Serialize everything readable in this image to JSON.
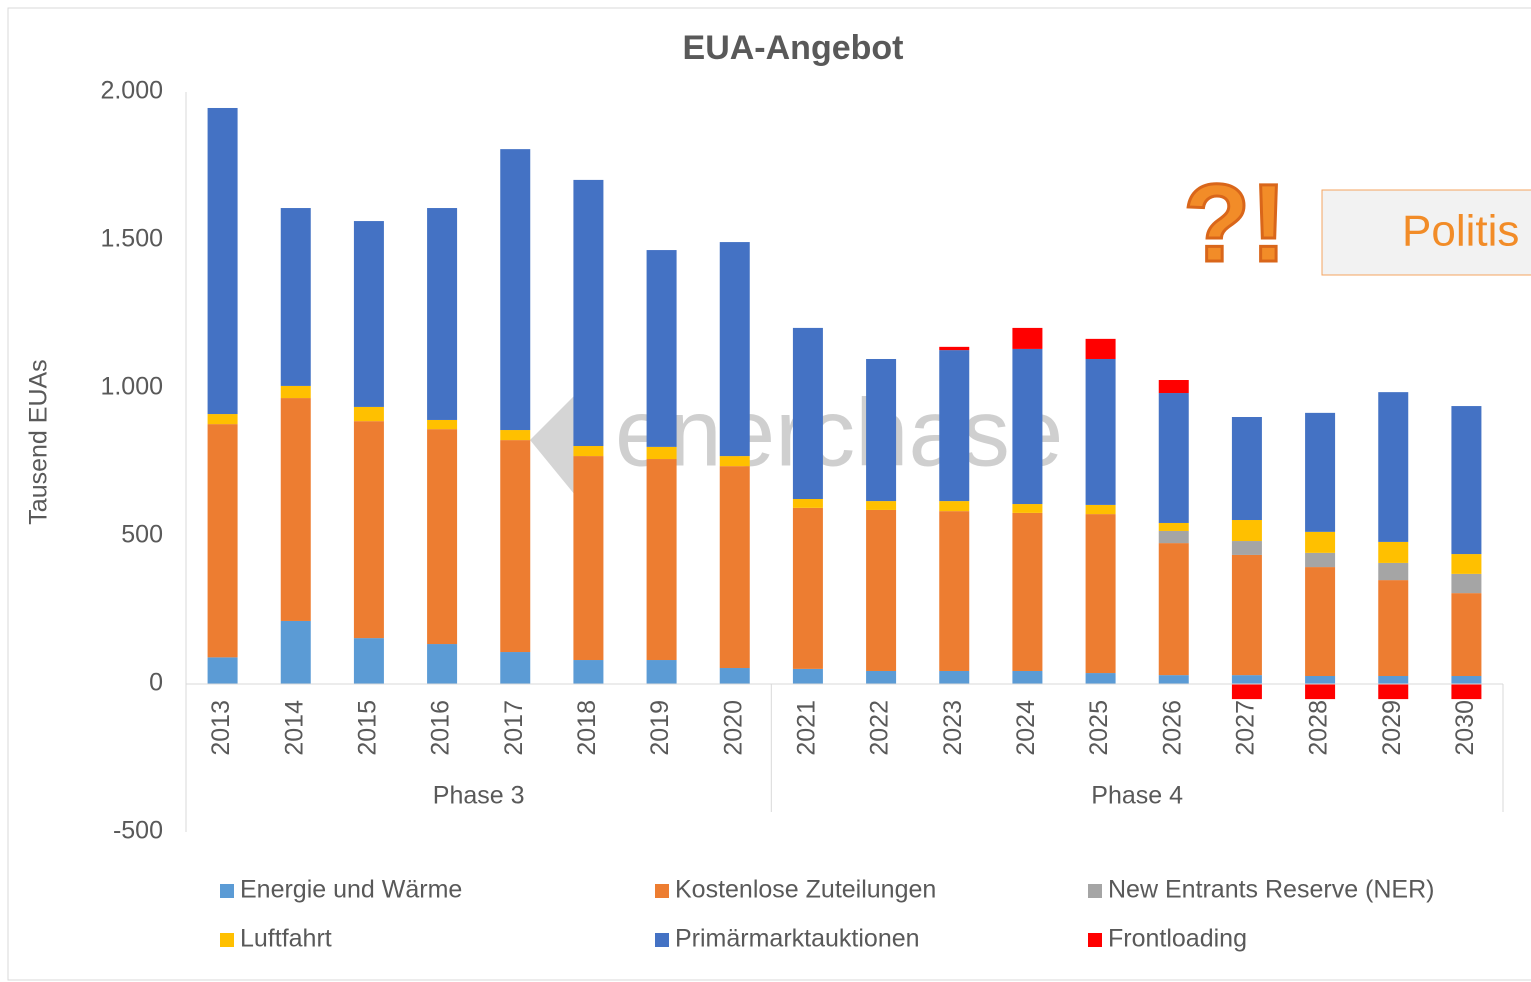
{
  "chart_data": {
    "type": "stacked_bar",
    "title": "EUA-Angebot",
    "y_label": "Tausend EUAs",
    "categories": [
      "2013",
      "2014",
      "2015",
      "2016",
      "2017",
      "2018",
      "2019",
      "2020",
      "2021",
      "2022",
      "2023",
      "2024",
      "2025",
      "2026",
      "2027",
      "2028",
      "2029",
      "2030"
    ],
    "groups": [
      {
        "name": "Phase 3",
        "categories": 8
      },
      {
        "name": "Phase 4",
        "categories": 10
      }
    ],
    "series": [
      {
        "name": "Energie und Wärme",
        "color": "#5b9bd5",
        "values": [
          90,
          213,
          155,
          135,
          108,
          81,
          81,
          54,
          51,
          44,
          44,
          44,
          37,
          30,
          30,
          27,
          27,
          27
        ]
      },
      {
        "name": "Kostenlose Zuteilungen",
        "color": "#ed7d31",
        "values": [
          788,
          753,
          733,
          726,
          716,
          689,
          679,
          682,
          544,
          544,
          540,
          534,
          537,
          446,
          406,
          368,
          324,
          280
        ]
      },
      {
        "name": "New Entrants Reserve (NER)",
        "color": "#a5a5a5",
        "values": [
          0,
          0,
          0,
          0,
          0,
          0,
          0,
          0,
          0,
          0,
          0,
          0,
          0,
          41,
          47,
          48,
          58,
          65
        ]
      },
      {
        "name": "Luftfahrt",
        "color": "#ffc000",
        "values": [
          34,
          41,
          48,
          31,
          34,
          34,
          41,
          34,
          30,
          30,
          34,
          30,
          31,
          27,
          71,
          71,
          71,
          67
        ]
      },
      {
        "name": "Primärmarktauktionen",
        "color": "#4472c4",
        "values": [
          1034,
          601,
          628,
          716,
          949,
          899,
          665,
          723,
          578,
          480,
          510,
          524,
          493,
          439,
          348,
          402,
          506,
          500
        ]
      },
      {
        "name": "Frontloading",
        "color": "#ff0000",
        "values": [
          0,
          0,
          0,
          0,
          0,
          0,
          0,
          0,
          0,
          0,
          11,
          71,
          68,
          44,
          -51,
          -51,
          -51,
          -51
        ]
      }
    ],
    "ylim": [
      -500,
      2000
    ],
    "yticks": [
      -500,
      0,
      500,
      {
        "value": 1000,
        "label": "1.000"
      },
      {
        "value": 1500,
        "label": "1.500"
      },
      {
        "value": 2000,
        "label": "2.000"
      }
    ],
    "watermark": "enerchase",
    "annotations": [
      "?!",
      "Politis"
    ]
  }
}
